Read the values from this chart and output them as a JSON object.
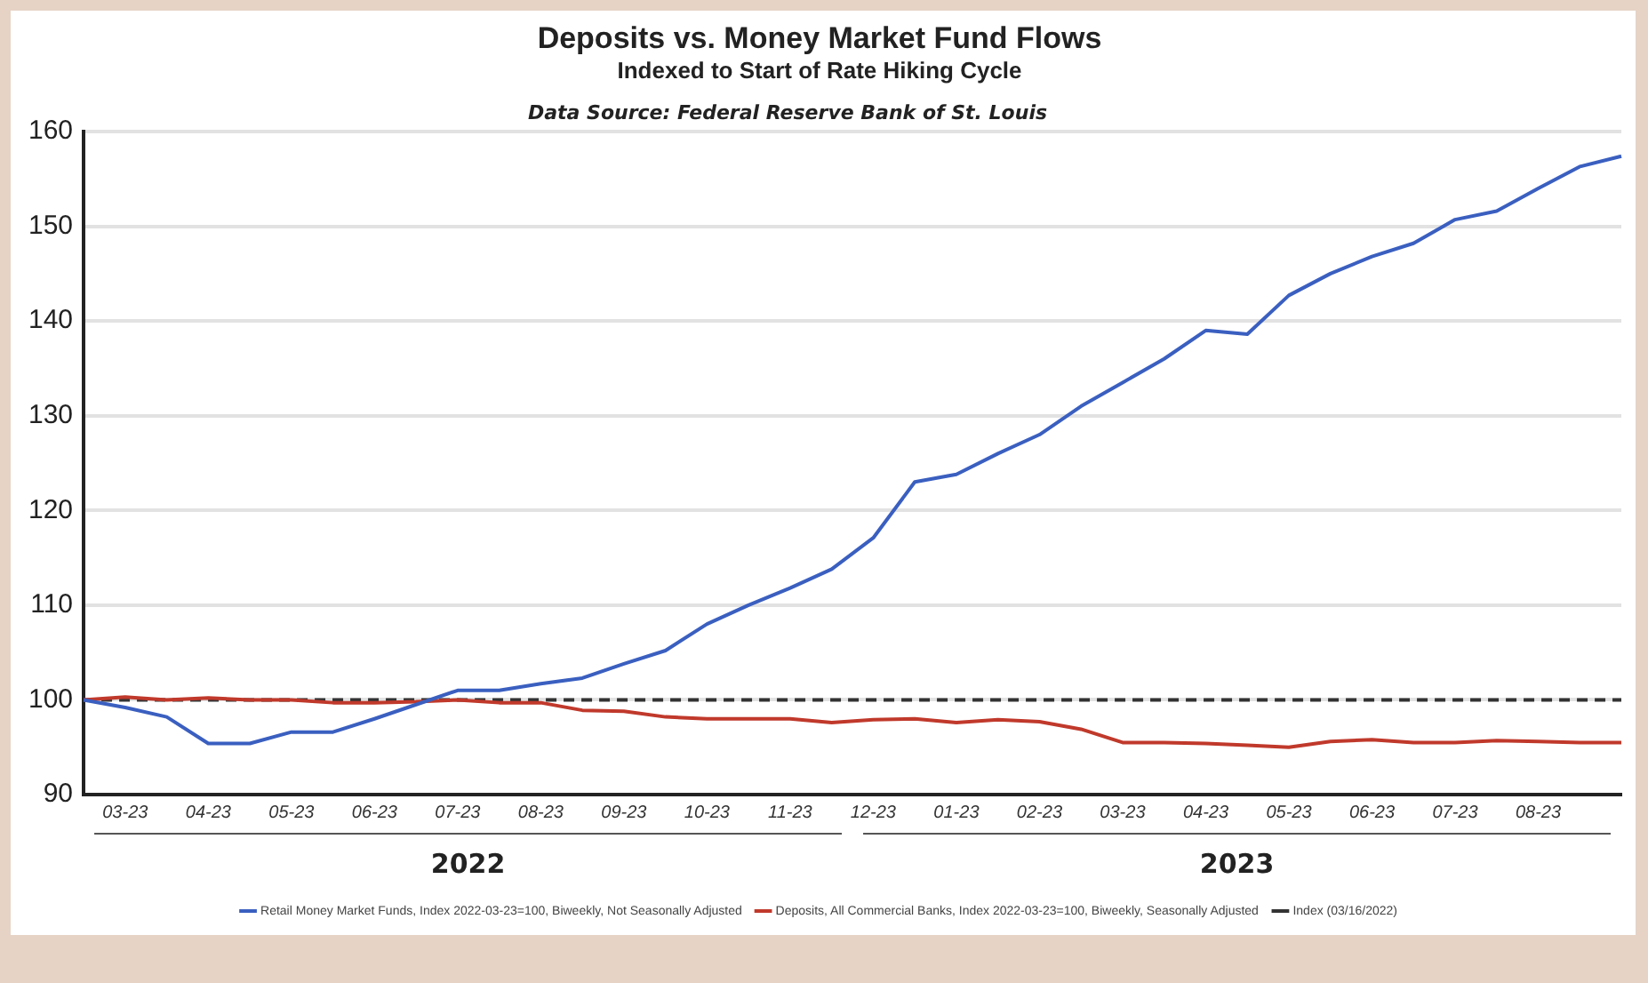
{
  "chart_data": {
    "type": "line",
    "title": "Deposits vs. Money Market Fund Flows",
    "subtitle": "Indexed to Start of Rate Hiking Cycle",
    "annotations": [
      "Data Source: Federal Reserve Bank of St. Louis",
      "2022",
      "2023"
    ],
    "categories": [
      null,
      "03-23",
      null,
      "04-23",
      null,
      "05-23",
      null,
      "06-23",
      null,
      "07-23",
      null,
      "08-23",
      null,
      "09-23",
      null,
      "10-23",
      null,
      "11-23",
      null,
      "12-23",
      null,
      "01-23",
      null,
      "02-23",
      null,
      "03-23",
      null,
      "04-23",
      null,
      "05-23",
      null,
      "06-23",
      null,
      "07-23",
      null,
      "08-23",
      null,
      null
    ],
    "series": [
      {
        "name": "Retail Money Market Funds, Index 2022-03-23=100, Biweekly, Not Seasonally Adjusted",
        "color": "#3a5fc0",
        "values": [
          100,
          99.2,
          98.2,
          95.4,
          95.4,
          96.6,
          96.6,
          98,
          99.5,
          101,
          101,
          101.7,
          102.3,
          103.8,
          105.2,
          108,
          110,
          111.8,
          113.8,
          117.1,
          123,
          123.8,
          126,
          128,
          131,
          133.5,
          136,
          139,
          138.6,
          142.7,
          145,
          146.8,
          148.2,
          150.7,
          151.6,
          154,
          156.3,
          157.4
        ]
      },
      {
        "name": "Deposits, All Commercial Banks, Index 2022-03-23=100, Biweekly, Seasonally Adjusted",
        "color": "#c0392b",
        "values": [
          100,
          100.3,
          100,
          100.2,
          100,
          100,
          99.7,
          99.7,
          99.8,
          100,
          99.7,
          99.7,
          98.9,
          98.8,
          98.2,
          98,
          98,
          98,
          97.6,
          97.9,
          98,
          97.6,
          97.9,
          97.7,
          96.9,
          95.5,
          95.5,
          95.4,
          95.2,
          95,
          95.6,
          95.8,
          95.5,
          95.5,
          95.7,
          95.6,
          95.5,
          95.5
        ]
      },
      {
        "name": "Index (03/16/2022)",
        "color": "#333333",
        "line_style": "dashed",
        "values": [
          100,
          100,
          100,
          100,
          100,
          100,
          100,
          100,
          100,
          100,
          100,
          100,
          100,
          100,
          100,
          100,
          100,
          100,
          100,
          100,
          100,
          100,
          100,
          100,
          100,
          100,
          100,
          100,
          100,
          100,
          100,
          100,
          100,
          100,
          100,
          100,
          100,
          100
        ]
      }
    ],
    "ylim": [
      90,
      160
    ],
    "yticks": [
      90,
      100,
      110,
      120,
      130,
      140,
      150,
      160
    ],
    "grid": "y",
    "legend": "bottom",
    "marker": "none",
    "line_style": "solid"
  }
}
